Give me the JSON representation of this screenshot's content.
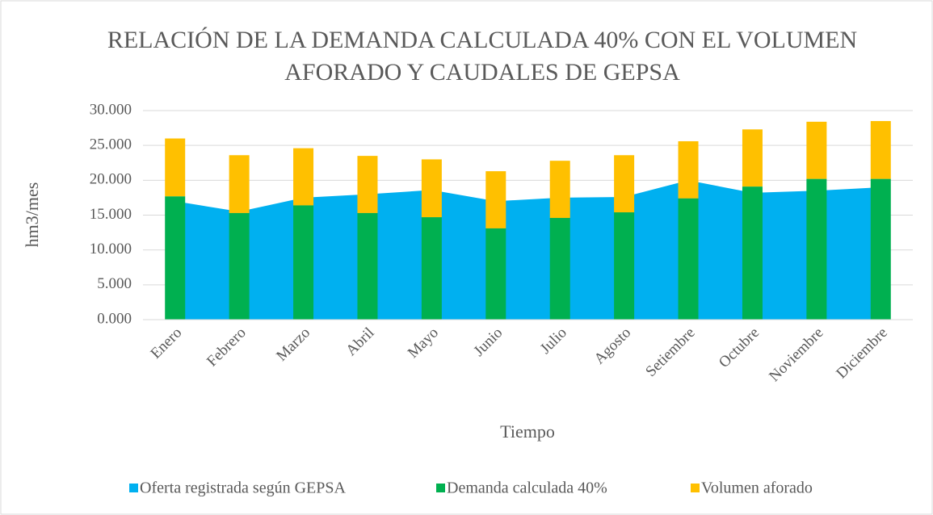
{
  "chart_data": {
    "type": "combo",
    "title": [
      "RELACIÓN DE LA DEMANDA CALCULADA 40% CON EL VOLUMEN",
      "AFORADO Y CAUDALES DE GEPSA"
    ],
    "x_label": "Tiempo",
    "y_label": "hm3/mes",
    "categories": [
      "Enero",
      "Febrero",
      "Marzo",
      "Abril",
      "Mayo",
      "Junio",
      "Julio",
      "Agosto",
      "Setiembre",
      "Octubre",
      "Noviembre",
      "Diciembre"
    ],
    "series": [
      {
        "name": "Oferta registrada según GEPSA",
        "type": "area",
        "color": "#00b0f0",
        "values": [
          17.0,
          15.5,
          17.5,
          18.0,
          18.6,
          17.0,
          17.5,
          17.6,
          20.0,
          18.2,
          18.5,
          19.0
        ]
      },
      {
        "name": "Demanda calculada 40%",
        "type": "bar",
        "color": "#00b050",
        "values": [
          17.7,
          15.3,
          16.4,
          15.3,
          14.7,
          13.1,
          14.6,
          15.4,
          17.4,
          19.1,
          20.2,
          20.2
        ]
      },
      {
        "name": "Volumen aforado",
        "type": "bar",
        "stacked": true,
        "color": "#ffc000",
        "values": [
          8.3,
          8.3,
          8.2,
          8.2,
          8.3,
          8.2,
          8.2,
          8.2,
          8.2,
          8.2,
          8.2,
          8.3
        ]
      }
    ],
    "ylim": [
      0,
      30
    ],
    "yticks": [
      {
        "value": 0,
        "label": "0.000"
      },
      {
        "value": 5,
        "label": "5.000"
      },
      {
        "value": 10,
        "label": "10.000"
      },
      {
        "value": 15,
        "label": "15.000"
      },
      {
        "value": 20,
        "label": "20.000"
      },
      {
        "value": 25,
        "label": "25.000"
      },
      {
        "value": 30,
        "label": "30.000"
      }
    ],
    "grid": true,
    "legend": "bottom"
  }
}
